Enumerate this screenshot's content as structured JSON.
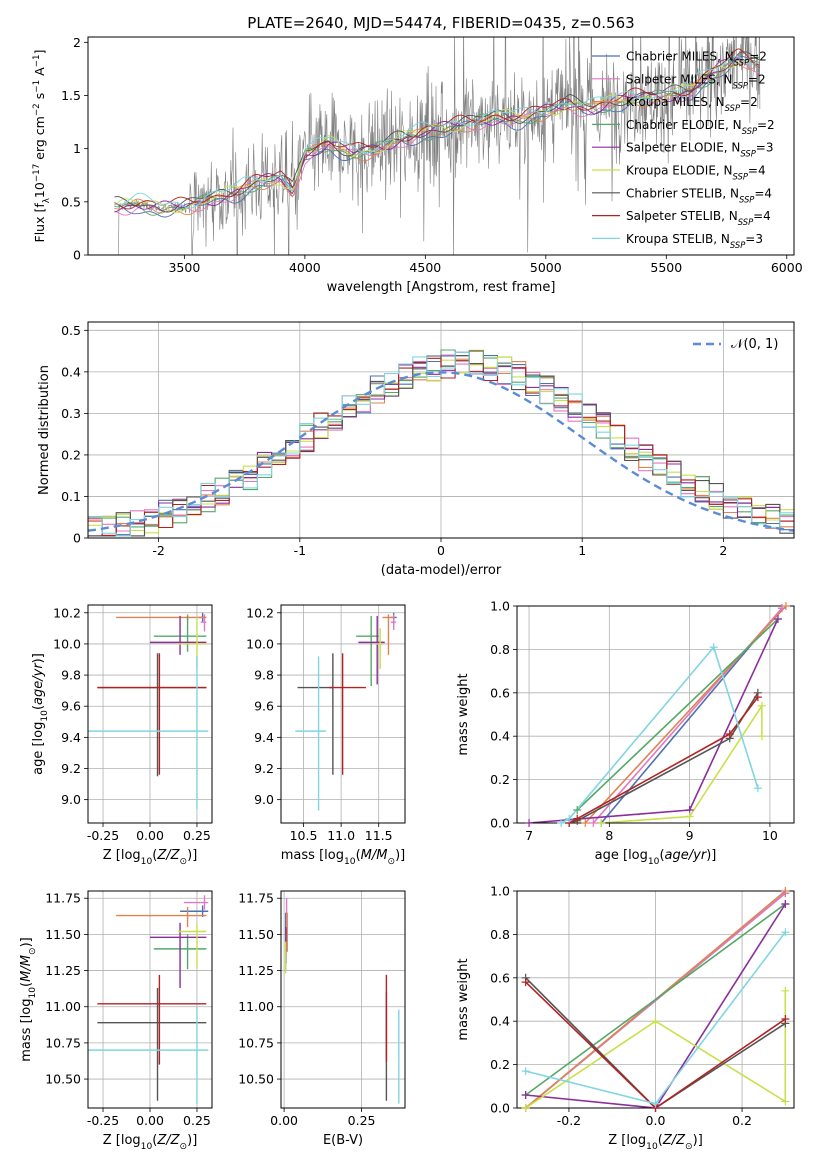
{
  "figure": {
    "title": "PLATE=2640, MJD=54474, FIBERID=0435, z=0.563"
  },
  "models": [
    {
      "name": "Chabrier MILES",
      "nssp": "2",
      "color": "#4c72b0"
    },
    {
      "name": "Salpeter MILES",
      "nssp": "2",
      "color": "#e377c2"
    },
    {
      "name": "Kroupa MILES",
      "nssp": "2",
      "color": "#dd8452"
    },
    {
      "name": "Chabrier ELODIE",
      "nssp": "2",
      "color": "#55a868"
    },
    {
      "name": "Salpeter ELODIE",
      "nssp": "3",
      "color": "#8c2d9c"
    },
    {
      "name": "Kroupa ELODIE",
      "nssp": "4",
      "color": "#c9e04a"
    },
    {
      "name": "Chabrier STELIB",
      "nssp": "4",
      "color": "#555555"
    },
    {
      "name": "Salpeter STELIB",
      "nssp": "4",
      "color": "#b22222"
    },
    {
      "name": "Kroupa STELIB",
      "nssp": "3",
      "color": "#7fd6e0"
    }
  ],
  "chart_data": [
    {
      "id": "spectrum",
      "type": "line",
      "xlabel": "wavelength [Angstrom, rest frame]",
      "ylabel": "Flux [f_λ10^-17 erg cm^-2 s^-1 A^-1]",
      "xlim": [
        3100,
        6030
      ],
      "ylim": [
        0,
        2.05
      ],
      "xticks": [
        3500,
        4000,
        4500,
        5000,
        5500,
        6000
      ],
      "yticks": [
        0.0,
        0.5,
        1.0,
        1.5,
        2.0
      ],
      "grid": false,
      "legend": "right",
      "data_color": "#7f7f7f",
      "data_range": [
        3220,
        5890
      ],
      "model_anchors": [
        [
          3210,
          0.46
        ],
        [
          3300,
          0.48
        ],
        [
          3400,
          0.44
        ],
        [
          3500,
          0.45
        ],
        [
          3600,
          0.52
        ],
        [
          3700,
          0.58
        ],
        [
          3800,
          0.68
        ],
        [
          3900,
          0.72
        ],
        [
          3950,
          0.6
        ],
        [
          4000,
          0.95
        ],
        [
          4100,
          1.05
        ],
        [
          4200,
          0.95
        ],
        [
          4300,
          1.0
        ],
        [
          4400,
          1.1
        ],
        [
          4500,
          1.15
        ],
        [
          4600,
          1.2
        ],
        [
          4700,
          1.25
        ],
        [
          4800,
          1.3
        ],
        [
          4900,
          1.28
        ],
        [
          5000,
          1.35
        ],
        [
          5100,
          1.42
        ],
        [
          5200,
          1.38
        ],
        [
          5300,
          1.45
        ],
        [
          5400,
          1.48
        ],
        [
          5500,
          1.5
        ],
        [
          5600,
          1.55
        ],
        [
          5700,
          1.72
        ],
        [
          5800,
          1.85
        ],
        [
          5890,
          1.8
        ]
      ]
    },
    {
      "id": "residuals",
      "type": "step",
      "xlabel": "(data-model)/error",
      "ylabel": "Normed distribution",
      "xlim": [
        -2.5,
        2.5
      ],
      "ylim": [
        0,
        0.52
      ],
      "xticks": [
        -2,
        -1,
        0,
        1,
        2
      ],
      "yticks": [
        0.0,
        0.1,
        0.2,
        0.3,
        0.4,
        0.5
      ],
      "grid": true,
      "legend": "top-right",
      "gaussian_label": "𝒩(0, 1)",
      "gaussian_color": "#5b8bd6"
    },
    {
      "id": "age_vs_Z",
      "type": "errorbar",
      "xlabel": "Z [log10(Z/Z⊙)]",
      "ylabel": "age  [log10(age/yr)]",
      "xlim": [
        -0.33,
        0.33
      ],
      "ylim": [
        8.85,
        10.25
      ],
      "xticks": [
        "-0.25",
        "0.00",
        "0.25"
      ],
      "xtick_values": [
        -0.25,
        0,
        0.25
      ],
      "yticks": [
        "9.0",
        "9.2",
        "9.4",
        "9.6",
        "9.8",
        "10.0",
        "10.2"
      ],
      "ytick_values": [
        9.0,
        9.2,
        9.4,
        9.6,
        9.8,
        10.0,
        10.2
      ],
      "points": [
        {
          "m": 0,
          "x": 0.28,
          "y": 10.17,
          "xerr": [
            0.02,
            0.02
          ],
          "yerr": [
            0.03,
            0.03
          ]
        },
        {
          "m": 1,
          "x": 0.29,
          "y": 10.14,
          "xerr": [
            0.02,
            0.01
          ],
          "yerr": [
            0.06,
            0.05
          ]
        },
        {
          "m": 2,
          "x": 0.2,
          "y": 10.17,
          "xerr": [
            0.38,
            0.1
          ],
          "yerr": [
            0.02,
            0.02
          ]
        },
        {
          "m": 3,
          "x": 0.2,
          "y": 10.05,
          "xerr": [
            0.18,
            0.1
          ],
          "yerr": [
            0.1,
            0.13
          ]
        },
        {
          "m": 4,
          "x": 0.16,
          "y": 10.01,
          "xerr": [
            0.16,
            0.14
          ],
          "yerr": [
            0.08,
            0.17
          ]
        },
        {
          "m": 5,
          "x": 0.25,
          "y": 10.0,
          "xerr": [
            0.1,
            0.05
          ],
          "yerr": [
            0.15,
            0.17
          ]
        },
        {
          "m": 6,
          "x": 0.04,
          "y": 9.72,
          "xerr": [
            0.32,
            0.26
          ],
          "yerr": [
            0.57,
            0.22
          ]
        },
        {
          "m": 7,
          "x": 0.05,
          "y": 9.72,
          "xerr": [
            0.33,
            0.25
          ],
          "yerr": [
            0.56,
            0.22
          ]
        },
        {
          "m": 8,
          "x": 0.25,
          "y": 9.44,
          "xerr": [
            0.58,
            0.06
          ],
          "yerr": [
            0.5,
            0.48
          ]
        }
      ]
    },
    {
      "id": "age_vs_mass",
      "type": "errorbar",
      "xlabel": "mass [log10(M/M⊙)]",
      "ylabel": "",
      "xlim": [
        10.2,
        11.85
      ],
      "ylim": [
        8.85,
        10.25
      ],
      "xticks": [
        "10.5",
        "11.0",
        "11.5"
      ],
      "xtick_values": [
        10.5,
        11.0,
        11.5
      ],
      "yticks": [
        "9.0",
        "9.2",
        "9.4",
        "9.6",
        "9.8",
        "10.0",
        "10.2"
      ],
      "ytick_values": [
        9.0,
        9.2,
        9.4,
        9.6,
        9.8,
        10.0,
        10.2
      ],
      "points": [
        {
          "m": 0,
          "x": 11.7,
          "y": 10.17,
          "xerr": [
            0.04,
            0.04
          ],
          "yerr": [
            0.03,
            0.03
          ]
        },
        {
          "m": 1,
          "x": 11.7,
          "y": 10.14,
          "xerr": [
            0.04,
            0.03
          ],
          "yerr": [
            0.05,
            0.05
          ]
        },
        {
          "m": 2,
          "x": 11.63,
          "y": 10.17,
          "xerr": [
            0.08,
            0.06
          ],
          "yerr": [
            0.24,
            0.02
          ]
        },
        {
          "m": 3,
          "x": 11.4,
          "y": 10.05,
          "xerr": [
            0.2,
            0.1
          ],
          "yerr": [
            0.32,
            0.13
          ]
        },
        {
          "m": 4,
          "x": 11.48,
          "y": 10.01,
          "xerr": [
            0.25,
            0.1
          ],
          "yerr": [
            0.27,
            0.17
          ]
        },
        {
          "m": 5,
          "x": 11.52,
          "y": 10.0,
          "xerr": [
            0.05,
            0.03
          ],
          "yerr": [
            0.16,
            0.1
          ]
        },
        {
          "m": 6,
          "x": 10.89,
          "y": 9.72,
          "xerr": [
            0.47,
            0.0
          ],
          "yerr": [
            0.56,
            0.22
          ]
        },
        {
          "m": 7,
          "x": 11.02,
          "y": 9.72,
          "xerr": [
            0.18,
            0.31
          ],
          "yerr": [
            0.56,
            0.22
          ]
        },
        {
          "m": 8,
          "x": 10.7,
          "y": 9.44,
          "xerr": [
            0.31,
            0.1
          ],
          "yerr": [
            0.51,
            0.48
          ]
        }
      ]
    },
    {
      "id": "weight_vs_age",
      "type": "line",
      "xlabel": "age  [log10(age/yr)]",
      "ylabel": "mass weight",
      "xlim": [
        6.85,
        10.3
      ],
      "ylim": [
        0,
        1
      ],
      "xticks": [
        "7",
        "8",
        "9",
        "10"
      ],
      "xtick_values": [
        7,
        8,
        9,
        10
      ],
      "yticks": [
        "0.0",
        "0.2",
        "0.4",
        "0.6",
        "0.8",
        "1.0"
      ],
      "ytick_values": [
        0,
        0.2,
        0.4,
        0.6,
        0.8,
        1.0
      ],
      "series": [
        {
          "m": 0,
          "x": [
            7.9,
            10.15
          ],
          "y": [
            0.0,
            0.99
          ]
        },
        {
          "m": 1,
          "x": [
            7.8,
            10.15
          ],
          "y": [
            0.0,
            0.99
          ]
        },
        {
          "m": 2,
          "x": [
            7.7,
            10.2
          ],
          "y": [
            0.0,
            1.0
          ]
        },
        {
          "m": 3,
          "x": [
            7.6,
            10.1
          ],
          "y": [
            0.06,
            0.94
          ]
        },
        {
          "m": 4,
          "x": [
            7.0,
            9.0,
            10.1
          ],
          "y": [
            0.0,
            0.06,
            0.94
          ]
        },
        {
          "m": 5,
          "x": [
            7.9,
            9.0,
            9.9,
            9.9
          ],
          "y": [
            0.0,
            0.03,
            0.54,
            0.4
          ]
        },
        {
          "m": 6,
          "x": [
            7.5,
            7.6,
            9.5,
            9.85
          ],
          "y": [
            0.0,
            0.01,
            0.39,
            0.6
          ]
        },
        {
          "m": 7,
          "x": [
            7.5,
            7.6,
            9.5,
            9.85
          ],
          "y": [
            0.0,
            0.02,
            0.41,
            0.58
          ]
        },
        {
          "m": 8,
          "x": [
            7.4,
            7.5,
            9.3,
            9.85
          ],
          "y": [
            0.0,
            0.02,
            0.81,
            0.16
          ]
        }
      ]
    },
    {
      "id": "mass_vs_Z",
      "type": "errorbar",
      "xlabel": "Z [log10(Z/Z⊙)]",
      "ylabel": "mass [log10(M/M⊙)]",
      "xlim": [
        -0.33,
        0.33
      ],
      "ylim": [
        10.3,
        11.8
      ],
      "xticks": [
        "-0.25",
        "0.00",
        "0.25"
      ],
      "xtick_values": [
        -0.25,
        0,
        0.25
      ],
      "yticks": [
        "10.50",
        "10.75",
        "11.00",
        "11.25",
        "11.50",
        "11.75"
      ],
      "ytick_values": [
        10.5,
        10.75,
        11.0,
        11.25,
        11.5,
        11.75
      ],
      "points": [
        {
          "m": 0,
          "x": 0.28,
          "y": 11.66,
          "xerr": [
            0.12,
            0.03
          ],
          "yerr": [
            0.04,
            0.04
          ]
        },
        {
          "m": 1,
          "x": 0.29,
          "y": 11.72,
          "xerr": [
            0.11,
            0.02
          ],
          "yerr": [
            0.05,
            0.05
          ]
        },
        {
          "m": 2,
          "x": 0.2,
          "y": 11.63,
          "xerr": [
            0.38,
            0.1
          ],
          "yerr": [
            0.08,
            0.06
          ]
        },
        {
          "m": 3,
          "x": 0.2,
          "y": 11.4,
          "xerr": [
            0.18,
            0.1
          ],
          "yerr": [
            0.14,
            0.1
          ]
        },
        {
          "m": 4,
          "x": 0.16,
          "y": 11.48,
          "xerr": [
            0.16,
            0.14
          ],
          "yerr": [
            0.35,
            0.1
          ]
        },
        {
          "m": 5,
          "x": 0.25,
          "y": 11.52,
          "xerr": [
            0.1,
            0.05
          ],
          "yerr": [
            0.25,
            0.05
          ]
        },
        {
          "m": 6,
          "x": 0.04,
          "y": 10.89,
          "xerr": [
            0.32,
            0.26
          ],
          "yerr": [
            0.54,
            0.24
          ]
        },
        {
          "m": 7,
          "x": 0.05,
          "y": 11.02,
          "xerr": [
            0.33,
            0.25
          ],
          "yerr": [
            0.42,
            0.2
          ]
        },
        {
          "m": 8,
          "x": 0.25,
          "y": 10.7,
          "xerr": [
            0.58,
            0.06
          ],
          "yerr": [
            0.37,
            0.3
          ]
        }
      ]
    },
    {
      "id": "mass_vs_ebv",
      "type": "errorbar",
      "xlabel": "E(B-V)",
      "ylabel": "",
      "xlim": [
        -0.01,
        0.39
      ],
      "ylim": [
        10.3,
        11.8
      ],
      "xticks": [
        "0.00",
        "0.25"
      ],
      "xtick_values": [
        0,
        0.25
      ],
      "yticks": [
        "10.50",
        "10.75",
        "11.00",
        "11.25",
        "11.50",
        "11.75"
      ],
      "ytick_values": [
        10.5,
        10.75,
        11.0,
        11.25,
        11.5,
        11.75
      ],
      "points": [
        {
          "m": 0,
          "x": 0.005,
          "y": 11.55,
          "xerr": [
            0,
            0
          ],
          "yerr": [
            0.1,
            0.1
          ]
        },
        {
          "m": 1,
          "x": 0.008,
          "y": 11.6,
          "xerr": [
            0,
            0
          ],
          "yerr": [
            0.12,
            0.15
          ]
        },
        {
          "m": 2,
          "x": 0.01,
          "y": 11.5,
          "xerr": [
            0,
            0
          ],
          "yerr": [
            0.12,
            0.15
          ]
        },
        {
          "m": 3,
          "x": 0.005,
          "y": 11.4,
          "xerr": [
            0,
            0
          ],
          "yerr": [
            0.15,
            0.1
          ]
        },
        {
          "m": 4,
          "x": 0.006,
          "y": 11.45,
          "xerr": [
            0,
            0
          ],
          "yerr": [
            0.15,
            0.1
          ]
        },
        {
          "m": 5,
          "x": 0.005,
          "y": 11.35,
          "xerr": [
            0,
            0
          ],
          "yerr": [
            0.12,
            0.1
          ]
        },
        {
          "m": 6,
          "x": 0.33,
          "y": 10.9,
          "xerr": [
            0,
            0
          ],
          "yerr": [
            0.55,
            0.2
          ]
        },
        {
          "m": 7,
          "x": 0.33,
          "y": 11.02,
          "xerr": [
            0,
            0
          ],
          "yerr": [
            0.4,
            0.2
          ]
        },
        {
          "m": 8,
          "x": 0.37,
          "y": 10.65,
          "xerr": [
            0,
            0
          ],
          "yerr": [
            0.32,
            0.33
          ]
        }
      ]
    },
    {
      "id": "weight_vs_Z",
      "type": "line",
      "xlabel": "Z [log10(Z/Z⊙)]",
      "ylabel": "mass weight",
      "xlim": [
        -0.32,
        0.32
      ],
      "ylim": [
        0,
        1
      ],
      "xticks": [
        "-0.2",
        "0.0",
        "0.2"
      ],
      "xtick_values": [
        -0.2,
        0,
        0.2
      ],
      "yticks": [
        "0.0",
        "0.2",
        "0.4",
        "0.6",
        "0.8",
        "1.0"
      ],
      "ytick_values": [
        0,
        0.2,
        0.4,
        0.6,
        0.8,
        1.0
      ],
      "series": [
        {
          "m": 0,
          "x": [
            -0.3,
            0.3
          ],
          "y": [
            0.0,
            0.99
          ]
        },
        {
          "m": 1,
          "x": [
            -0.3,
            0.3
          ],
          "y": [
            0.0,
            0.99
          ]
        },
        {
          "m": 2,
          "x": [
            -0.3,
            0.3
          ],
          "y": [
            0.0,
            1.0
          ]
        },
        {
          "m": 3,
          "x": [
            -0.3,
            0.3
          ],
          "y": [
            0.06,
            0.94
          ]
        },
        {
          "m": 4,
          "x": [
            -0.3,
            0.0,
            0.3
          ],
          "y": [
            0.06,
            0.0,
            0.94
          ]
        },
        {
          "m": 5,
          "x": [
            -0.3,
            0.0,
            0.3,
            0.3
          ],
          "y": [
            0.0,
            0.4,
            0.03,
            0.54
          ]
        },
        {
          "m": 6,
          "x": [
            -0.3,
            0.0,
            0.3
          ],
          "y": [
            0.6,
            0.0,
            0.39
          ]
        },
        {
          "m": 7,
          "x": [
            -0.3,
            0.0,
            0.3
          ],
          "y": [
            0.58,
            0.0,
            0.41
          ]
        },
        {
          "m": 8,
          "x": [
            -0.3,
            0.0,
            0.3
          ],
          "y": [
            0.17,
            0.02,
            0.81
          ]
        }
      ]
    }
  ]
}
